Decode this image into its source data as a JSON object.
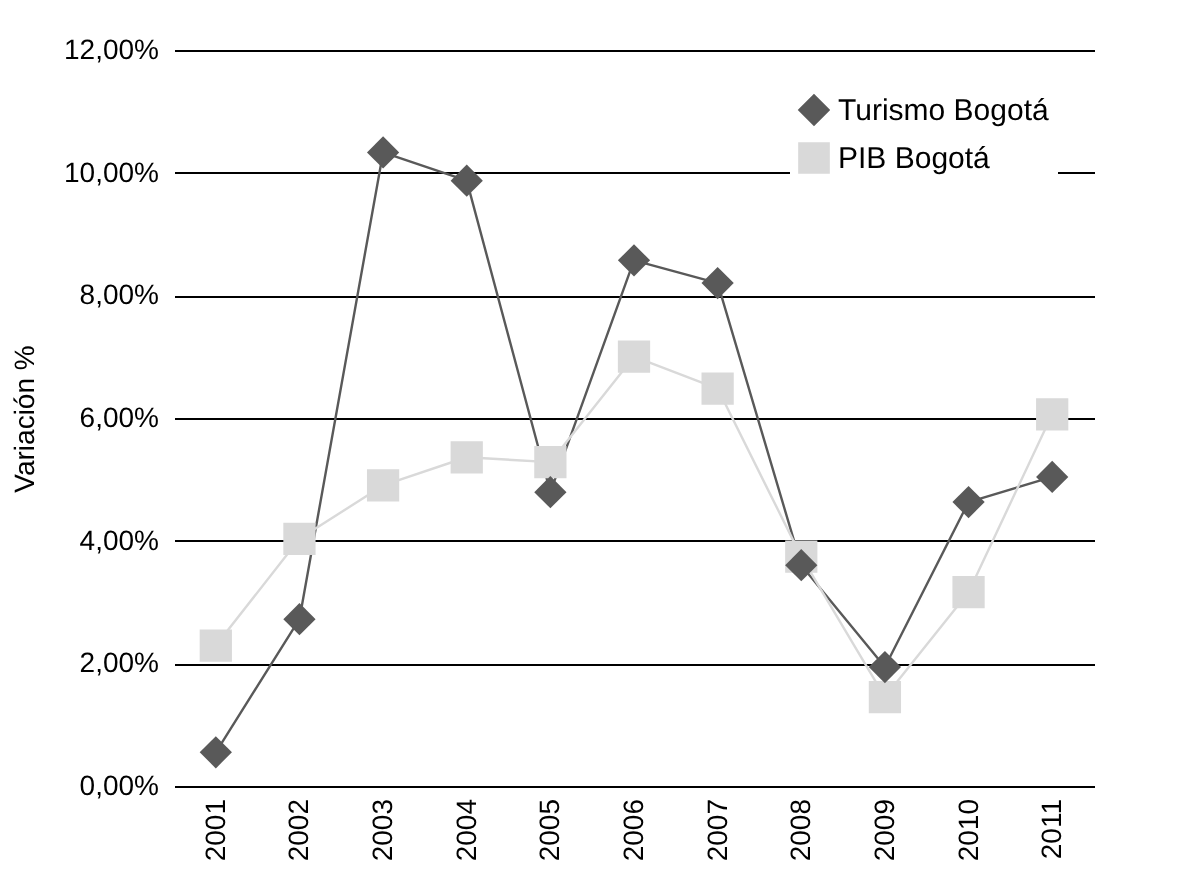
{
  "chart_data": {
    "type": "line",
    "ylabel": "Variación %",
    "categories": [
      "2001",
      "2002",
      "2003",
      "2004",
      "2005",
      "2006",
      "2007",
      "2008",
      "2009",
      "2010",
      "2011"
    ],
    "series": [
      {
        "name": "Turismo Bogotá",
        "color": "#595959",
        "marker": "diamond",
        "values": [
          0.55,
          2.72,
          10.33,
          9.87,
          4.79,
          8.57,
          8.2,
          3.6,
          1.94,
          4.63,
          5.04
        ]
      },
      {
        "name": "PIB Bogotá",
        "color": "#d9d9d9",
        "marker": "square",
        "values": [
          2.29,
          4.03,
          4.9,
          5.36,
          5.28,
          7.0,
          6.48,
          3.74,
          1.45,
          3.16,
          6.06
        ]
      }
    ],
    "ylim": [
      0,
      12
    ],
    "yticks": [
      {
        "value": 0,
        "label": "0,00%"
      },
      {
        "value": 2,
        "label": "2,00%"
      },
      {
        "value": 4,
        "label": "4,00%"
      },
      {
        "value": 6,
        "label": "6,00%"
      },
      {
        "value": 8,
        "label": "8,00%"
      },
      {
        "value": 10,
        "label": "10,00%"
      },
      {
        "value": 12,
        "label": "12,00%"
      }
    ],
    "grid": "y",
    "legend": "top right",
    "line_style": "solid"
  }
}
